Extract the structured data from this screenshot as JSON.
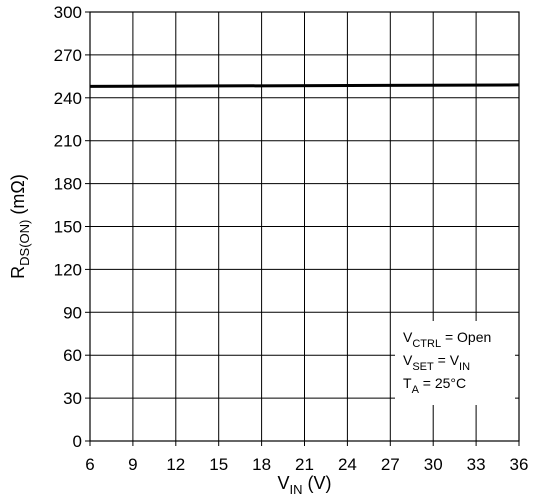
{
  "chart_data": {
    "type": "line",
    "title": "",
    "xlabel": {
      "main": "V",
      "sub": "IN",
      "suffix": " (V)"
    },
    "ylabel": {
      "main": "R",
      "sub": "DS(ON)",
      "suffix": " (mΩ)"
    },
    "xlim": [
      6,
      36
    ],
    "ylim": [
      0,
      300
    ],
    "x_ticks": [
      6,
      9,
      12,
      15,
      18,
      21,
      24,
      27,
      30,
      33,
      36
    ],
    "y_ticks": [
      0,
      30,
      60,
      90,
      120,
      150,
      180,
      210,
      240,
      270,
      300
    ],
    "grid": true,
    "series": [
      {
        "x": [
          6,
          36
        ],
        "y": [
          248,
          249
        ],
        "color": "#000000"
      }
    ],
    "annotations": [
      {
        "parts": [
          [
            "V",
            "n"
          ],
          [
            "CTRL",
            "sub"
          ],
          [
            " = Open",
            "n"
          ]
        ]
      },
      {
        "parts": [
          [
            "V",
            "n"
          ],
          [
            "SET",
            "sub"
          ],
          [
            " = V",
            "n"
          ],
          [
            "IN",
            "sub"
          ]
        ]
      },
      {
        "parts": [
          [
            "T",
            "n"
          ],
          [
            "A",
            "sub"
          ],
          [
            " = 25°C",
            "n"
          ]
        ]
      }
    ],
    "annotation_position": "bottom-right"
  }
}
